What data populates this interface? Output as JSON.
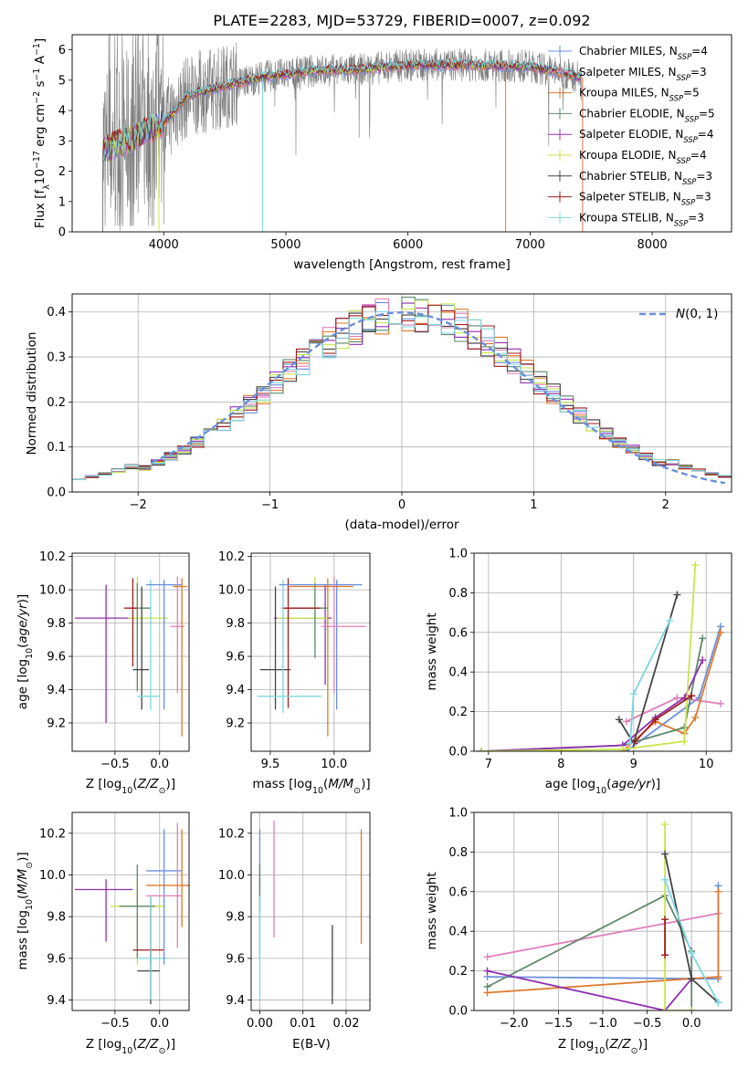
{
  "figure": {
    "title": "PLATE=2283, MJD=53729, FIBERID=0007, z=0.092"
  },
  "colors": {
    "Chabrier MILES": "#6a8fdc",
    "Salpeter MILES": "#e17fbb",
    "Kroupa MILES": "#e07a2e",
    "Chabrier ELODIE": "#5d8a6a",
    "Salpeter ELODIE": "#9030b0",
    "Kroupa ELODIE": "#c8e64c",
    "Chabrier STELIB": "#444444",
    "Salpeter STELIB": "#a11d1d",
    "Kroupa STELIB": "#7fd6e0",
    "data": "#808080"
  },
  "chart_data": [
    {
      "id": "spectrum",
      "type": "line",
      "title": "PLATE=2283, MJD=53729, FIBERID=0007, z=0.092",
      "xlabel": "wavelength [Angstrom, rest frame]",
      "ylabel": "Flux [f_λ 10^-17 erg cm^-2 s^-1 A^-1]",
      "xlim": [
        3250,
        8650
      ],
      "ylim": [
        0,
        6.5
      ],
      "xticks": [
        4000,
        5000,
        6000,
        7000,
        8000
      ],
      "yticks": [
        0,
        1,
        2,
        3,
        4,
        5,
        6
      ],
      "continuum": {
        "x": [
          3500,
          3700,
          3900,
          4000,
          4200,
          4500,
          4800,
          5200,
          5600,
          6000,
          6500,
          7000,
          7300,
          7420
        ],
        "y": [
          2.7,
          3.0,
          3.4,
          3.6,
          4.5,
          4.8,
          5.1,
          5.3,
          5.35,
          5.5,
          5.5,
          5.45,
          5.2,
          5.1
        ]
      },
      "spikes": [
        {
          "x": 3500,
          "y": 0
        },
        {
          "x": 3960,
          "y": 0
        },
        {
          "x": 4810,
          "y": 0
        },
        {
          "x": 6800,
          "y": 0
        },
        {
          "x": 7430,
          "y": 0
        }
      ],
      "legend_loc": "right",
      "legend": [
        {
          "label": "Chabrier MILES, N_SSP=4"
        },
        {
          "label": "Salpeter MILES, N_SSP=3"
        },
        {
          "label": "Kroupa MILES, N_SSP=5"
        },
        {
          "label": "Chabrier ELODIE, N_SSP=5"
        },
        {
          "label": "Salpeter ELODIE, N_SSP=4"
        },
        {
          "label": "Kroupa ELODIE, N_SSP=4"
        },
        {
          "label": "Chabrier STELIB, N_SSP=3"
        },
        {
          "label": "Salpeter STELIB, N_SSP=3"
        },
        {
          "label": "Kroupa STELIB, N_SSP=3"
        }
      ]
    },
    {
      "id": "residuals",
      "type": "line",
      "xlabel": "(data-model)/error",
      "ylabel": "Normed distribution",
      "xlim": [
        -2.5,
        2.5
      ],
      "ylim": [
        0,
        0.44
      ],
      "xticks": [
        -2,
        -1,
        0,
        1,
        2
      ],
      "yticks": [
        0.0,
        0.1,
        0.2,
        0.3,
        0.4
      ],
      "grid": true,
      "reference_label": "N(0,1)",
      "legend_loc": "upper right"
    },
    {
      "id": "age_vs_Z",
      "type": "scatter",
      "xlabel": "Z [log10(Z/Z_sun)]",
      "ylabel": "age [log10(age/yr)]",
      "xlim": [
        -0.98,
        0.33
      ],
      "ylim": [
        9.03,
        10.22
      ],
      "xticks": [
        -0.5,
        0.0
      ],
      "yticks": [
        9.2,
        9.4,
        9.6,
        9.8,
        10.0,
        10.2
      ],
      "grid": true,
      "errorbars": [
        {
          "model": "Salpeter ELODIE",
          "x": -0.6,
          "y": 9.83,
          "xerr": [
            0.35,
            0.3
          ],
          "yerr": [
            0.63,
            0.2
          ]
        },
        {
          "model": "Kroupa ELODIE",
          "x": -0.25,
          "y": 9.83,
          "xerr": [
            0.1,
            0.35
          ],
          "yerr": [
            0.15,
            0.25
          ]
        },
        {
          "model": "Chabrier ELODIE",
          "x": -0.25,
          "y": 9.89,
          "xerr": [
            0.1,
            0.15
          ],
          "yerr": [
            0.5,
            0.15
          ]
        },
        {
          "model": "Chabrier STELIB",
          "x": -0.2,
          "y": 9.52,
          "xerr": [
            0.1,
            0.08
          ],
          "yerr": [
            0.24,
            0.5
          ]
        },
        {
          "model": "Salpeter STELIB",
          "x": -0.3,
          "y": 9.89,
          "xerr": [
            0.1,
            0.05
          ],
          "yerr": [
            0.35,
            0.18
          ]
        },
        {
          "model": "Kroupa STELIB",
          "x": -0.1,
          "y": 9.36,
          "xerr": [
            0.15,
            0.1
          ],
          "yerr": [
            0.08,
            0.7
          ]
        },
        {
          "model": "Chabrier MILES",
          "x": 0.05,
          "y": 10.03,
          "xerr": [
            0.2,
            0.2
          ],
          "yerr": [
            0.75,
            0.03
          ]
        },
        {
          "model": "Salpeter MILES",
          "x": 0.2,
          "y": 9.78,
          "xerr": [
            0.08,
            0.08
          ],
          "yerr": [
            0.4,
            0.3
          ]
        },
        {
          "model": "Kroupa MILES",
          "x": 0.25,
          "y": 10.02,
          "xerr": [
            0.1,
            0.06
          ],
          "yerr": [
            0.9,
            0.05
          ]
        }
      ]
    },
    {
      "id": "age_vs_mass",
      "type": "scatter",
      "xlabel": "mass [log10(M/M_sun)]",
      "ylabel": "",
      "xlim": [
        9.35,
        10.28
      ],
      "ylim": [
        9.03,
        10.22
      ],
      "xticks": [
        9.5,
        10.0
      ],
      "yticks": [
        9.2,
        9.4,
        9.6,
        9.8,
        10.0,
        10.2
      ],
      "grid": true,
      "errorbars": [
        {
          "model": "Salpeter ELODIE",
          "x": 9.93,
          "y": 9.83,
          "xerr": [
            0.4,
            0.05
          ],
          "yerr": [
            0.4,
            0.2
          ]
        },
        {
          "model": "Kroupa ELODIE",
          "x": 9.85,
          "y": 9.83,
          "xerr": [
            0.3,
            0.1
          ],
          "yerr": [
            0.15,
            0.25
          ]
        },
        {
          "model": "Chabrier ELODIE",
          "x": 9.85,
          "y": 9.89,
          "xerr": [
            0.25,
            0.1
          ],
          "yerr": [
            0.3,
            0.15
          ]
        },
        {
          "model": "Chabrier STELIB",
          "x": 9.54,
          "y": 9.52,
          "xerr": [
            0.12,
            0.12
          ],
          "yerr": [
            0.24,
            0.5
          ]
        },
        {
          "model": "Salpeter STELIB",
          "x": 9.64,
          "y": 9.89,
          "xerr": [
            0.05,
            0.25
          ],
          "yerr": [
            0.6,
            0.18
          ]
        },
        {
          "model": "Kroupa STELIB",
          "x": 9.6,
          "y": 9.36,
          "xerr": [
            0.2,
            0.3
          ],
          "yerr": [
            0.1,
            0.7
          ]
        },
        {
          "model": "Chabrier MILES",
          "x": 10.02,
          "y": 10.03,
          "xerr": [
            0.45,
            0.2
          ],
          "yerr": [
            0.75,
            0.03
          ]
        },
        {
          "model": "Salpeter MILES",
          "x": 10.0,
          "y": 9.78,
          "xerr": [
            0.1,
            0.25
          ],
          "yerr": [
            0.4,
            0.3
          ]
        },
        {
          "model": "Kroupa MILES",
          "x": 9.95,
          "y": 10.02,
          "xerr": [
            0.3,
            0.2
          ],
          "yerr": [
            0.9,
            0.05
          ]
        }
      ]
    },
    {
      "id": "weight_vs_age",
      "type": "line",
      "xlabel": "age [log10(age/yr)]",
      "ylabel": "mass weight",
      "xlim": [
        6.8,
        10.35
      ],
      "ylim": [
        0,
        1.0
      ],
      "xticks": [
        7,
        8,
        9,
        10
      ],
      "yticks": [
        0.0,
        0.2,
        0.4,
        0.6,
        0.8,
        1.0
      ],
      "grid": true,
      "series": [
        {
          "model": "Chabrier MILES",
          "x": [
            8.9,
            9.9,
            10.2
          ],
          "y": [
            0.0,
            0.27,
            0.63
          ]
        },
        {
          "model": "Salpeter MILES",
          "x": [
            8.9,
            9.6,
            10.2
          ],
          "y": [
            0.15,
            0.27,
            0.24
          ]
        },
        {
          "model": "Kroupa MILES",
          "x": [
            8.85,
            9.3,
            9.7,
            9.85,
            10.2
          ],
          "y": [
            0.0,
            0.15,
            0.09,
            0.17,
            0.6
          ]
        },
        {
          "model": "Chabrier ELODIE",
          "x": [
            6.9,
            8.85,
            9.7,
            9.95
          ],
          "y": [
            0.0,
            0.03,
            0.12,
            0.57
          ]
        },
        {
          "model": "Salpeter ELODIE",
          "x": [
            6.9,
            8.85,
            9.3,
            9.7,
            9.95
          ],
          "y": [
            0.0,
            0.03,
            0.17,
            0.27,
            0.46
          ]
        },
        {
          "model": "Kroupa ELODIE",
          "x": [
            6.9,
            8.85,
            9.7,
            9.85
          ],
          "y": [
            0.0,
            0.01,
            0.05,
            0.94
          ]
        },
        {
          "model": "Chabrier STELIB",
          "x": [
            8.8,
            9.0,
            9.6
          ],
          "y": [
            0.16,
            0.04,
            0.79
          ]
        },
        {
          "model": "Salpeter STELIB",
          "x": [
            9.0,
            9.3,
            9.8
          ],
          "y": [
            0.04,
            0.16,
            0.28
          ]
        },
        {
          "model": "Kroupa STELIB",
          "x": [
            8.95,
            9.0,
            9.5
          ],
          "y": [
            0.04,
            0.29,
            0.66
          ]
        }
      ]
    },
    {
      "id": "mass_vs_Z",
      "type": "scatter",
      "xlabel": "Z [log10(Z/Z_sun)]",
      "ylabel": "mass [log10(M/M_sun)]",
      "xlim": [
        -0.98,
        0.33
      ],
      "ylim": [
        9.35,
        10.3
      ],
      "xticks": [
        -0.5,
        0.0
      ],
      "yticks": [
        9.4,
        9.6,
        9.8,
        10.0,
        10.2
      ],
      "grid": true,
      "errorbars": [
        {
          "model": "Salpeter ELODIE",
          "x": -0.6,
          "y": 9.93,
          "xerr": [
            0.35,
            0.3
          ],
          "yerr": [
            0.25,
            0.05
          ]
        },
        {
          "model": "Kroupa ELODIE",
          "x": -0.25,
          "y": 9.85,
          "xerr": [
            0.3,
            0.3
          ],
          "yerr": [
            0.28,
            0.1
          ]
        },
        {
          "model": "Chabrier ELODIE",
          "x": -0.25,
          "y": 9.85,
          "xerr": [
            0.2,
            0.2
          ],
          "yerr": [
            0.25,
            0.2
          ]
        },
        {
          "model": "Chabrier STELIB",
          "x": -0.1,
          "y": 9.54,
          "xerr": [
            0.15,
            0.1
          ],
          "yerr": [
            0.16,
            0.1
          ]
        },
        {
          "model": "Salpeter STELIB",
          "x": -0.1,
          "y": 9.64,
          "xerr": [
            0.2,
            0.15
          ],
          "yerr": [
            0.07,
            0.25
          ]
        },
        {
          "model": "Kroupa STELIB",
          "x": -0.1,
          "y": 9.6,
          "xerr": [
            0.15,
            0.2
          ],
          "yerr": [
            0.2,
            0.3
          ]
        },
        {
          "model": "Chabrier MILES",
          "x": 0.05,
          "y": 10.02,
          "xerr": [
            0.2,
            0.2
          ],
          "yerr": [
            0.45,
            0.2
          ]
        },
        {
          "model": "Salpeter MILES",
          "x": 0.2,
          "y": 9.9,
          "xerr": [
            0.35,
            0.05
          ],
          "yerr": [
            0.25,
            0.35
          ]
        },
        {
          "model": "Kroupa MILES",
          "x": 0.25,
          "y": 9.95,
          "xerr": [
            0.4,
            0.1
          ],
          "yerr": [
            0.2,
            0.27
          ]
        }
      ]
    },
    {
      "id": "mass_vs_EBV",
      "type": "scatter",
      "xlabel": "E(B-V)",
      "ylabel": "",
      "xlim": [
        -0.002,
        0.0255
      ],
      "ylim": [
        9.35,
        10.3
      ],
      "xticks": [
        0.0,
        0.01,
        0.02
      ],
      "yticks": [
        9.4,
        9.6,
        9.8,
        10.0,
        10.2
      ],
      "grid": true,
      "errorbars": [
        {
          "model": "Chabrier MILES",
          "x": 0.0,
          "y": 10.02,
          "xerr": [
            0,
            0
          ],
          "yerr": [
            0.2,
            0.2
          ]
        },
        {
          "model": "Chabrier ELODIE",
          "x": 0.0,
          "y": 9.85,
          "xerr": [
            0,
            0
          ],
          "yerr": [
            0.25,
            0.2
          ]
        },
        {
          "model": "Kroupa STELIB",
          "x": 0.0,
          "y": 9.6,
          "xerr": [
            0,
            0
          ],
          "yerr": [
            0.2,
            0.3
          ]
        },
        {
          "model": "Salpeter MILES",
          "x": 0.0033,
          "y": 9.98,
          "xerr": [
            0,
            0
          ],
          "yerr": [
            0.28,
            0.28
          ]
        },
        {
          "model": "Chabrier STELIB",
          "x": 0.0168,
          "y": 9.54,
          "xerr": [
            0,
            0
          ],
          "yerr": [
            0.16,
            0.22
          ]
        },
        {
          "model": "Kroupa MILES",
          "x": 0.0235,
          "y": 9.95,
          "xerr": [
            0,
            0
          ],
          "yerr": [
            0.28,
            0.27
          ]
        }
      ]
    },
    {
      "id": "weight_vs_Z",
      "type": "line",
      "xlabel": "Z [log10(Z/Z_sun)]",
      "ylabel": "mass weight",
      "xlim": [
        -2.45,
        0.45
      ],
      "ylim": [
        0,
        1.0
      ],
      "xticks": [
        -2.0,
        -1.5,
        -1.0,
        -0.5,
        0.0
      ],
      "yticks": [
        0.0,
        0.2,
        0.4,
        0.6,
        0.8,
        1.0
      ],
      "grid": true,
      "series": [
        {
          "model": "Chabrier MILES",
          "x": [
            -2.3,
            0.3,
            0.3
          ],
          "y": [
            0.17,
            0.16,
            0.63
          ]
        },
        {
          "model": "Salpeter MILES",
          "x": [
            -2.3,
            0.3
          ],
          "y": [
            0.27,
            0.49
          ]
        },
        {
          "model": "Kroupa MILES",
          "x": [
            -2.3,
            0.3,
            0.3
          ],
          "y": [
            0.09,
            0.17,
            0.6
          ]
        },
        {
          "model": "Chabrier ELODIE",
          "x": [
            -2.3,
            -0.3,
            0.0,
            0.0
          ],
          "y": [
            0.12,
            0.58,
            0.3,
            0.0
          ]
        },
        {
          "model": "Salpeter ELODIE",
          "x": [
            -2.3,
            -0.3,
            0.0
          ],
          "y": [
            0.2,
            0.0,
            0.16
          ]
        },
        {
          "model": "Kroupa ELODIE",
          "x": [
            -0.3,
            -0.3,
            0.0
          ],
          "y": [
            0.94,
            0.0,
            0.0
          ]
        },
        {
          "model": "Chabrier STELIB",
          "x": [
            -0.3,
            0.0,
            0.3
          ],
          "y": [
            0.79,
            0.16,
            0.04
          ]
        },
        {
          "model": "Salpeter STELIB",
          "x": [
            -0.3,
            -0.3
          ],
          "y": [
            0.46,
            0.28
          ]
        },
        {
          "model": "Kroupa STELIB",
          "x": [
            -0.3,
            0.0,
            0.3
          ],
          "y": [
            0.66,
            0.29,
            0.04
          ]
        }
      ]
    }
  ]
}
